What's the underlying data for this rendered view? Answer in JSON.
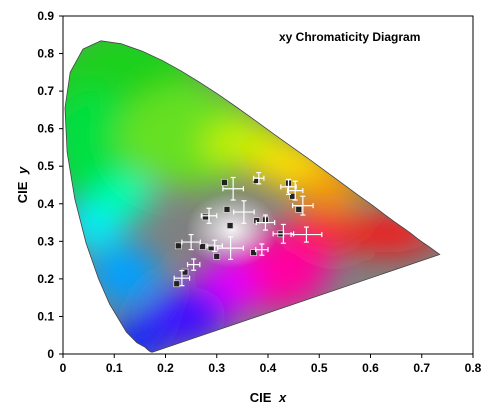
{
  "chart_data": {
    "type": "scatter",
    "title": "xy Chromaticity Diagram",
    "xlabel_prefix": "CIE",
    "xlabel_var": "x",
    "ylabel_prefix": "CIE",
    "ylabel_var": "y",
    "xlim": [
      0,
      0.8
    ],
    "ylim": [
      0,
      0.9
    ],
    "x_ticks": [
      "0",
      "0.1",
      "0.2",
      "0.3",
      "0.4",
      "0.5",
      "0.6",
      "0.7",
      "0.8"
    ],
    "y_ticks": [
      "0",
      "0.1",
      "0.2",
      "0.3",
      "0.4",
      "0.5",
      "0.6",
      "0.7",
      "0.8",
      "0.9"
    ],
    "grid": false,
    "spectral_locus": [
      [
        0.175,
        0.005
      ],
      [
        0.172,
        0.005
      ],
      [
        0.167,
        0.009
      ],
      [
        0.16,
        0.018
      ],
      [
        0.144,
        0.03
      ],
      [
        0.124,
        0.058
      ],
      [
        0.091,
        0.133
      ],
      [
        0.069,
        0.201
      ],
      [
        0.045,
        0.295
      ],
      [
        0.023,
        0.413
      ],
      [
        0.008,
        0.538
      ],
      [
        0.004,
        0.655
      ],
      [
        0.014,
        0.75
      ],
      [
        0.039,
        0.812
      ],
      [
        0.074,
        0.834
      ],
      [
        0.114,
        0.826
      ],
      [
        0.155,
        0.806
      ],
      [
        0.193,
        0.782
      ],
      [
        0.23,
        0.754
      ],
      [
        0.266,
        0.724
      ],
      [
        0.302,
        0.692
      ],
      [
        0.337,
        0.659
      ],
      [
        0.373,
        0.624
      ],
      [
        0.408,
        0.589
      ],
      [
        0.444,
        0.554
      ],
      [
        0.479,
        0.52
      ],
      [
        0.512,
        0.487
      ],
      [
        0.544,
        0.455
      ],
      [
        0.575,
        0.424
      ],
      [
        0.603,
        0.397
      ],
      [
        0.627,
        0.372
      ],
      [
        0.648,
        0.351
      ],
      [
        0.666,
        0.334
      ],
      [
        0.68,
        0.32
      ],
      [
        0.691,
        0.308
      ],
      [
        0.702,
        0.297
      ],
      [
        0.713,
        0.287
      ],
      [
        0.725,
        0.275
      ],
      [
        0.735,
        0.265
      ]
    ],
    "series": [
      {
        "marker": "black-square",
        "points": [
          [
            0.222,
            0.187
          ],
          [
            0.225,
            0.288
          ],
          [
            0.238,
            0.218
          ],
          [
            0.272,
            0.286
          ],
          [
            0.278,
            0.365
          ],
          [
            0.289,
            0.283
          ],
          [
            0.3,
            0.26
          ],
          [
            0.315,
            0.457
          ],
          [
            0.32,
            0.385
          ],
          [
            0.326,
            0.342
          ],
          [
            0.377,
            0.462
          ],
          [
            0.372,
            0.27
          ],
          [
            0.378,
            0.355
          ],
          [
            0.425,
            0.32
          ],
          [
            0.44,
            0.455
          ],
          [
            0.448,
            0.42
          ],
          [
            0.46,
            0.385
          ],
          [
            0.395,
            0.357
          ]
        ]
      },
      {
        "marker": "white-cross",
        "points": [
          [
            0.232,
            0.202,
            0.015,
            0.02
          ],
          [
            0.25,
            0.298,
            0.018,
            0.02
          ],
          [
            0.255,
            0.238,
            0.012,
            0.015
          ],
          [
            0.285,
            0.368,
            0.015,
            0.02
          ],
          [
            0.296,
            0.288,
            0.015,
            0.015
          ],
          [
            0.332,
            0.44,
            0.02,
            0.03
          ],
          [
            0.327,
            0.282,
            0.025,
            0.03
          ],
          [
            0.353,
            0.378,
            0.02,
            0.03
          ],
          [
            0.382,
            0.468,
            0.01,
            0.015
          ],
          [
            0.388,
            0.278,
            0.012,
            0.015
          ],
          [
            0.395,
            0.35,
            0.018,
            0.02
          ],
          [
            0.43,
            0.32,
            0.02,
            0.025
          ],
          [
            0.44,
            0.445,
            0.015,
            0.02
          ],
          [
            0.453,
            0.435,
            0.015,
            0.025
          ],
          [
            0.468,
            0.395,
            0.02,
            0.025
          ],
          [
            0.475,
            0.318,
            0.03,
            0.02
          ]
        ]
      }
    ]
  }
}
